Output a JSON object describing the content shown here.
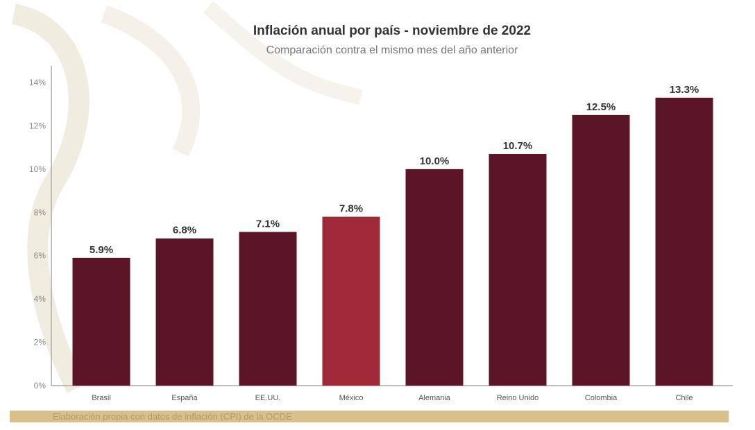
{
  "chart_data": {
    "type": "bar",
    "title": "Inflación anual por país - noviembre de 2022",
    "subtitle": "Comparación contra el mismo mes del año anterior",
    "categories": [
      "Brasil",
      "España",
      "EE.UU.",
      "México",
      "Alemania",
      "Reino Unido",
      "Colombia",
      "Chile"
    ],
    "values": [
      5.9,
      6.8,
      7.1,
      7.8,
      10.0,
      10.7,
      12.5,
      13.3
    ],
    "data_labels": [
      "5.9%",
      "6.8%",
      "7.1%",
      "7.8%",
      "10.0%",
      "10.7%",
      "12.5%",
      "13.3%"
    ],
    "ylim": [
      0,
      14
    ],
    "yticks": [
      0,
      2,
      4,
      6,
      8,
      10,
      12,
      14
    ],
    "ytick_labels": [
      "0%",
      "2%",
      "4%",
      "6%",
      "8%",
      "10%",
      "12%",
      "14%"
    ],
    "xlabel": "",
    "ylabel": "",
    "grid": false,
    "colors": {
      "default": "#5c1526",
      "highlight": "#9e2a38"
    },
    "highlight_category": "México"
  },
  "footer": {
    "source": "Elaboración propia con datos de inflación (CPI) de la OCDE"
  }
}
